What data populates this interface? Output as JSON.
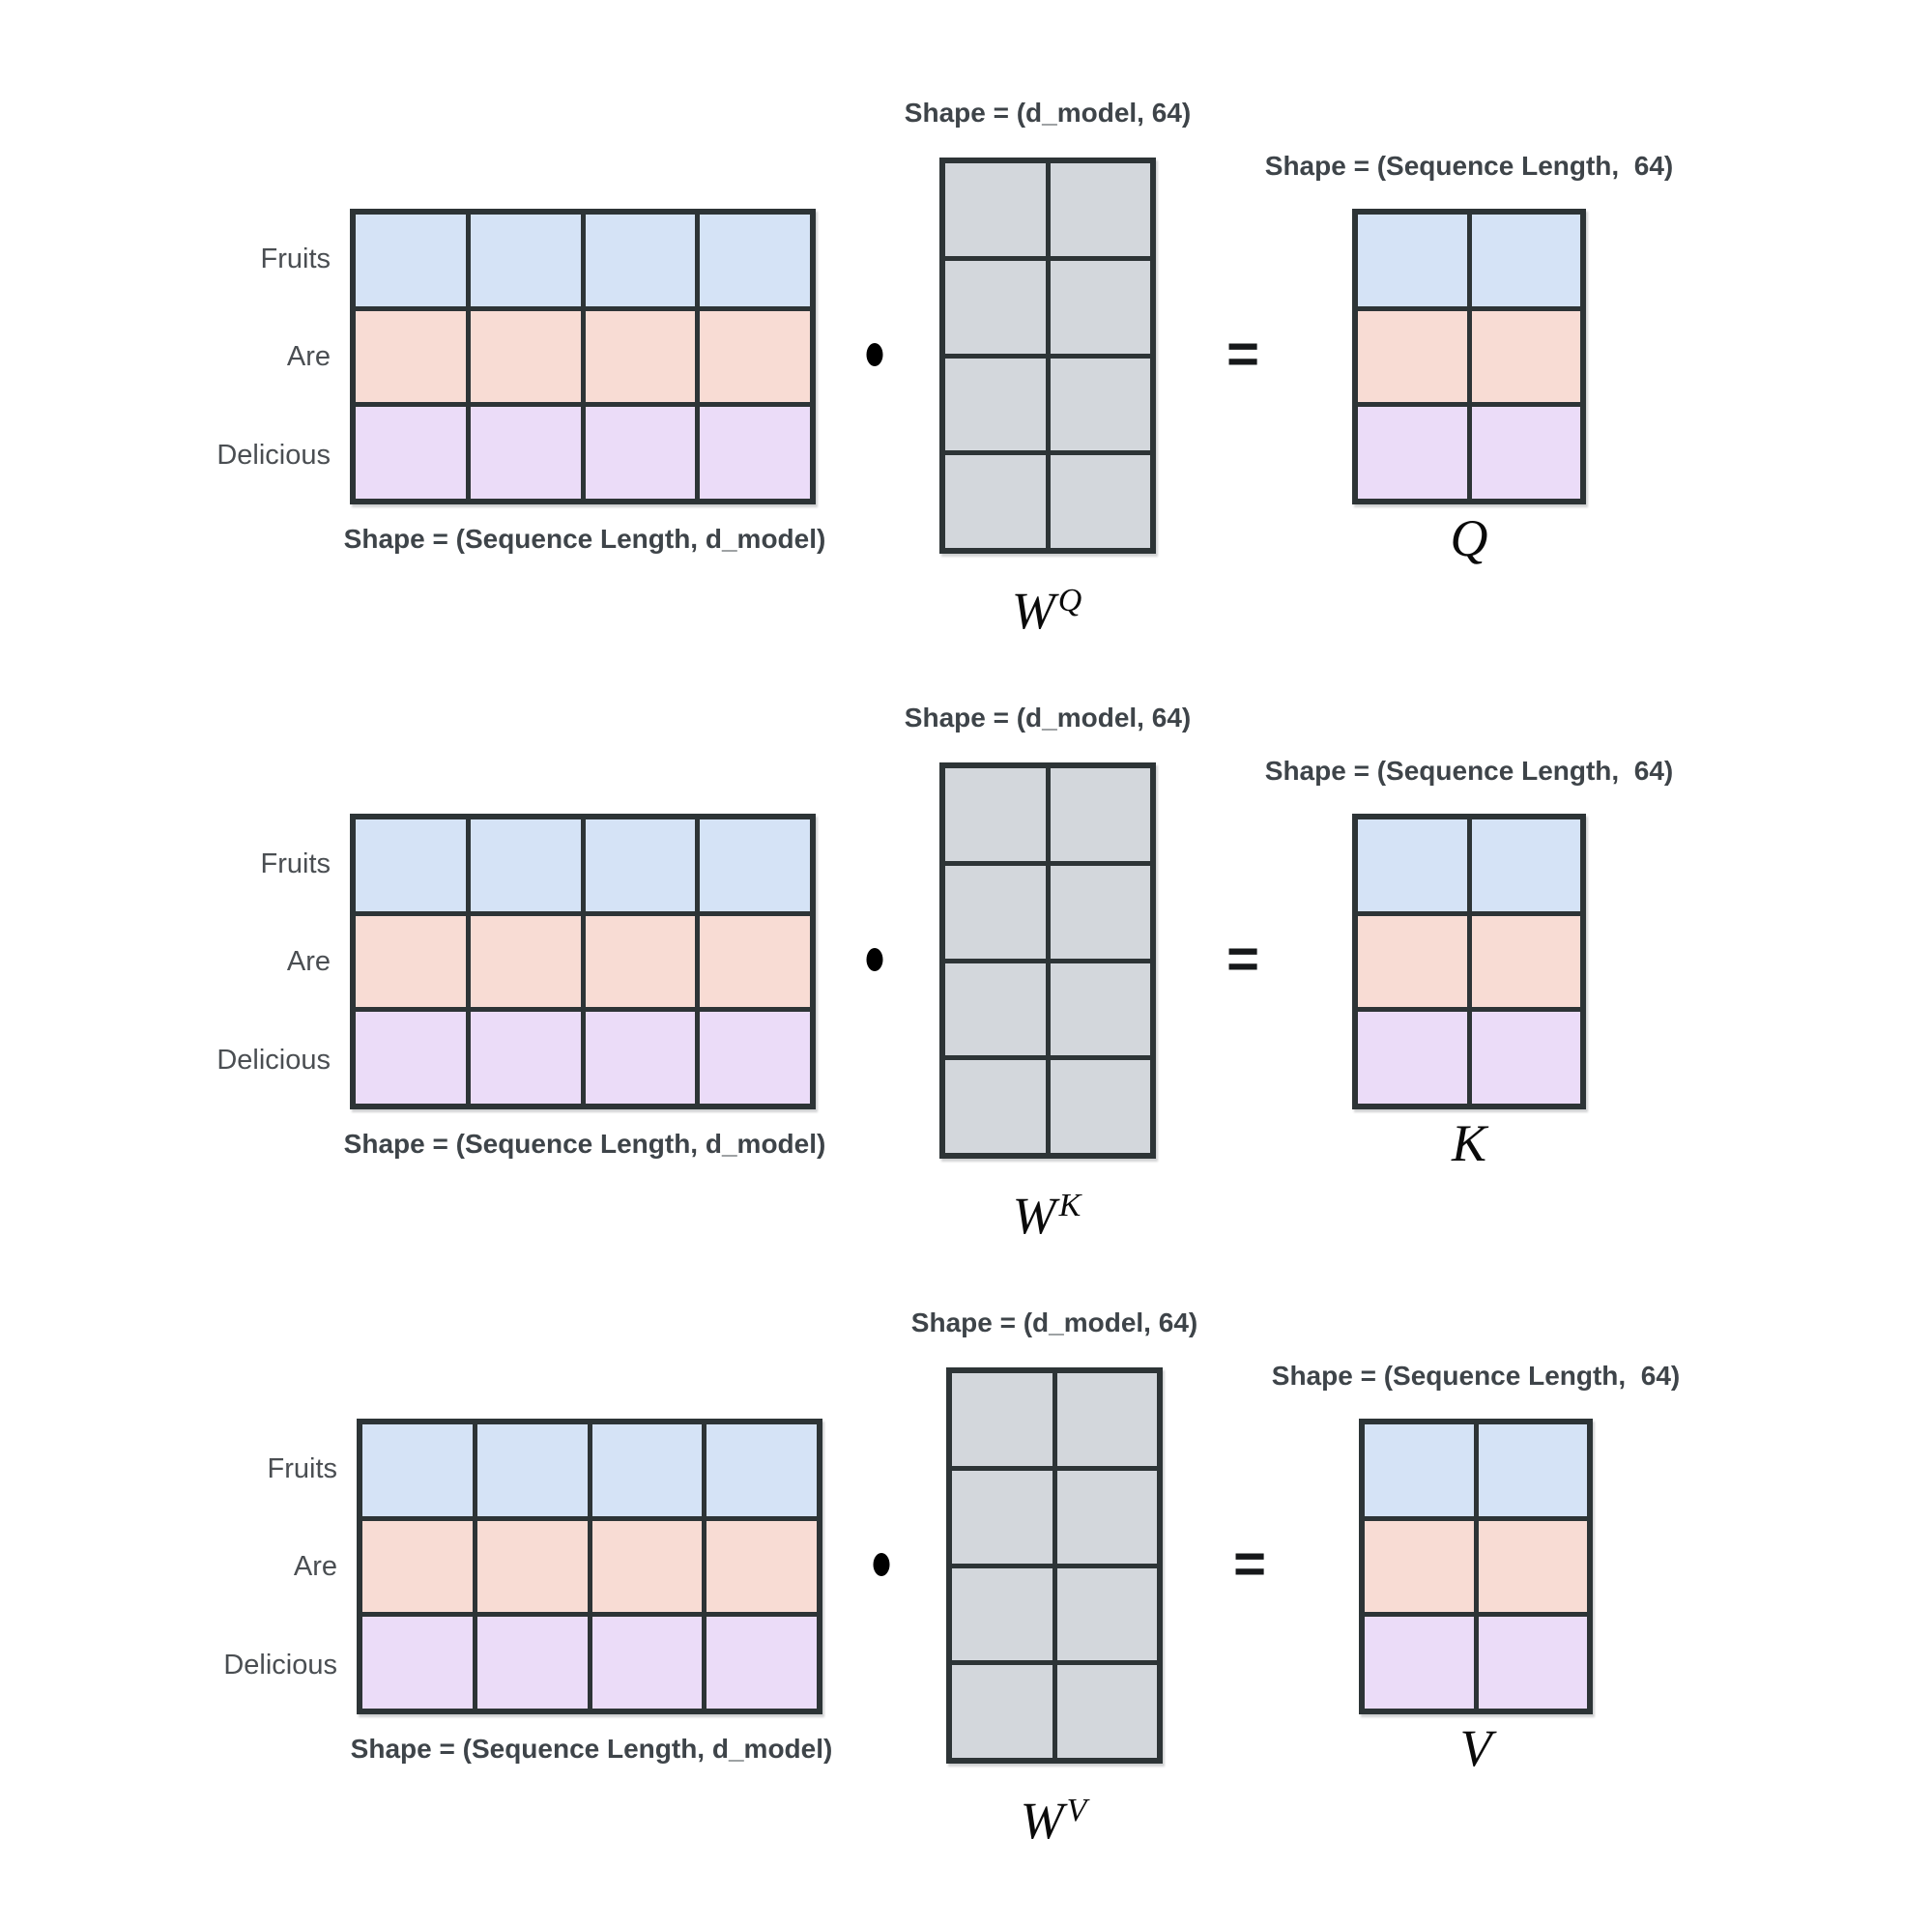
{
  "background": "#ffffff",
  "colors": {
    "border": "#2d3436",
    "row_fills": [
      "#d5e3f6",
      "#f8dcd4",
      "#ebdcf8"
    ],
    "weight_fill": "#d3d7dc",
    "label_text": "#3e4449",
    "row_label_text": "#4a4e52"
  },
  "matrices": {
    "input": {
      "rows": 3,
      "cols": 4
    },
    "weight": {
      "rows": 4,
      "cols": 2
    },
    "result": {
      "rows": 3,
      "cols": 2
    }
  },
  "rows": [
    {
      "weight_shape_label": "Shape = (d_model, 64)",
      "result_shape_label": "Shape = (Sequence Length,  64)",
      "input_shape_label": "Shape = (Sequence Length, d_model)",
      "input_row_labels": [
        "Fruits",
        "Are",
        "Delicious"
      ],
      "dot_operator": "•",
      "equals_sign": "=",
      "weight_name": {
        "base": "W",
        "sup": "Q"
      },
      "result_name": "Q"
    },
    {
      "weight_shape_label": "Shape = (d_model, 64)",
      "result_shape_label": "Shape = (Sequence Length,  64)",
      "input_shape_label": "Shape = (Sequence Length, d_model)",
      "input_row_labels": [
        "Fruits",
        "Are",
        "Delicious"
      ],
      "dot_operator": "•",
      "equals_sign": "=",
      "weight_name": {
        "base": "W",
        "sup": "K"
      },
      "result_name": "K"
    },
    {
      "weight_shape_label": "Shape = (d_model, 64)",
      "result_shape_label": "Shape = (Sequence Length,  64)",
      "input_shape_label": "Shape = (Sequence Length, d_model)",
      "input_row_labels": [
        "Fruits",
        "Are",
        "Delicious"
      ],
      "dot_operator": "•",
      "equals_sign": "=",
      "weight_name": {
        "base": "W",
        "sup": "V"
      },
      "result_name": "V"
    }
  ]
}
